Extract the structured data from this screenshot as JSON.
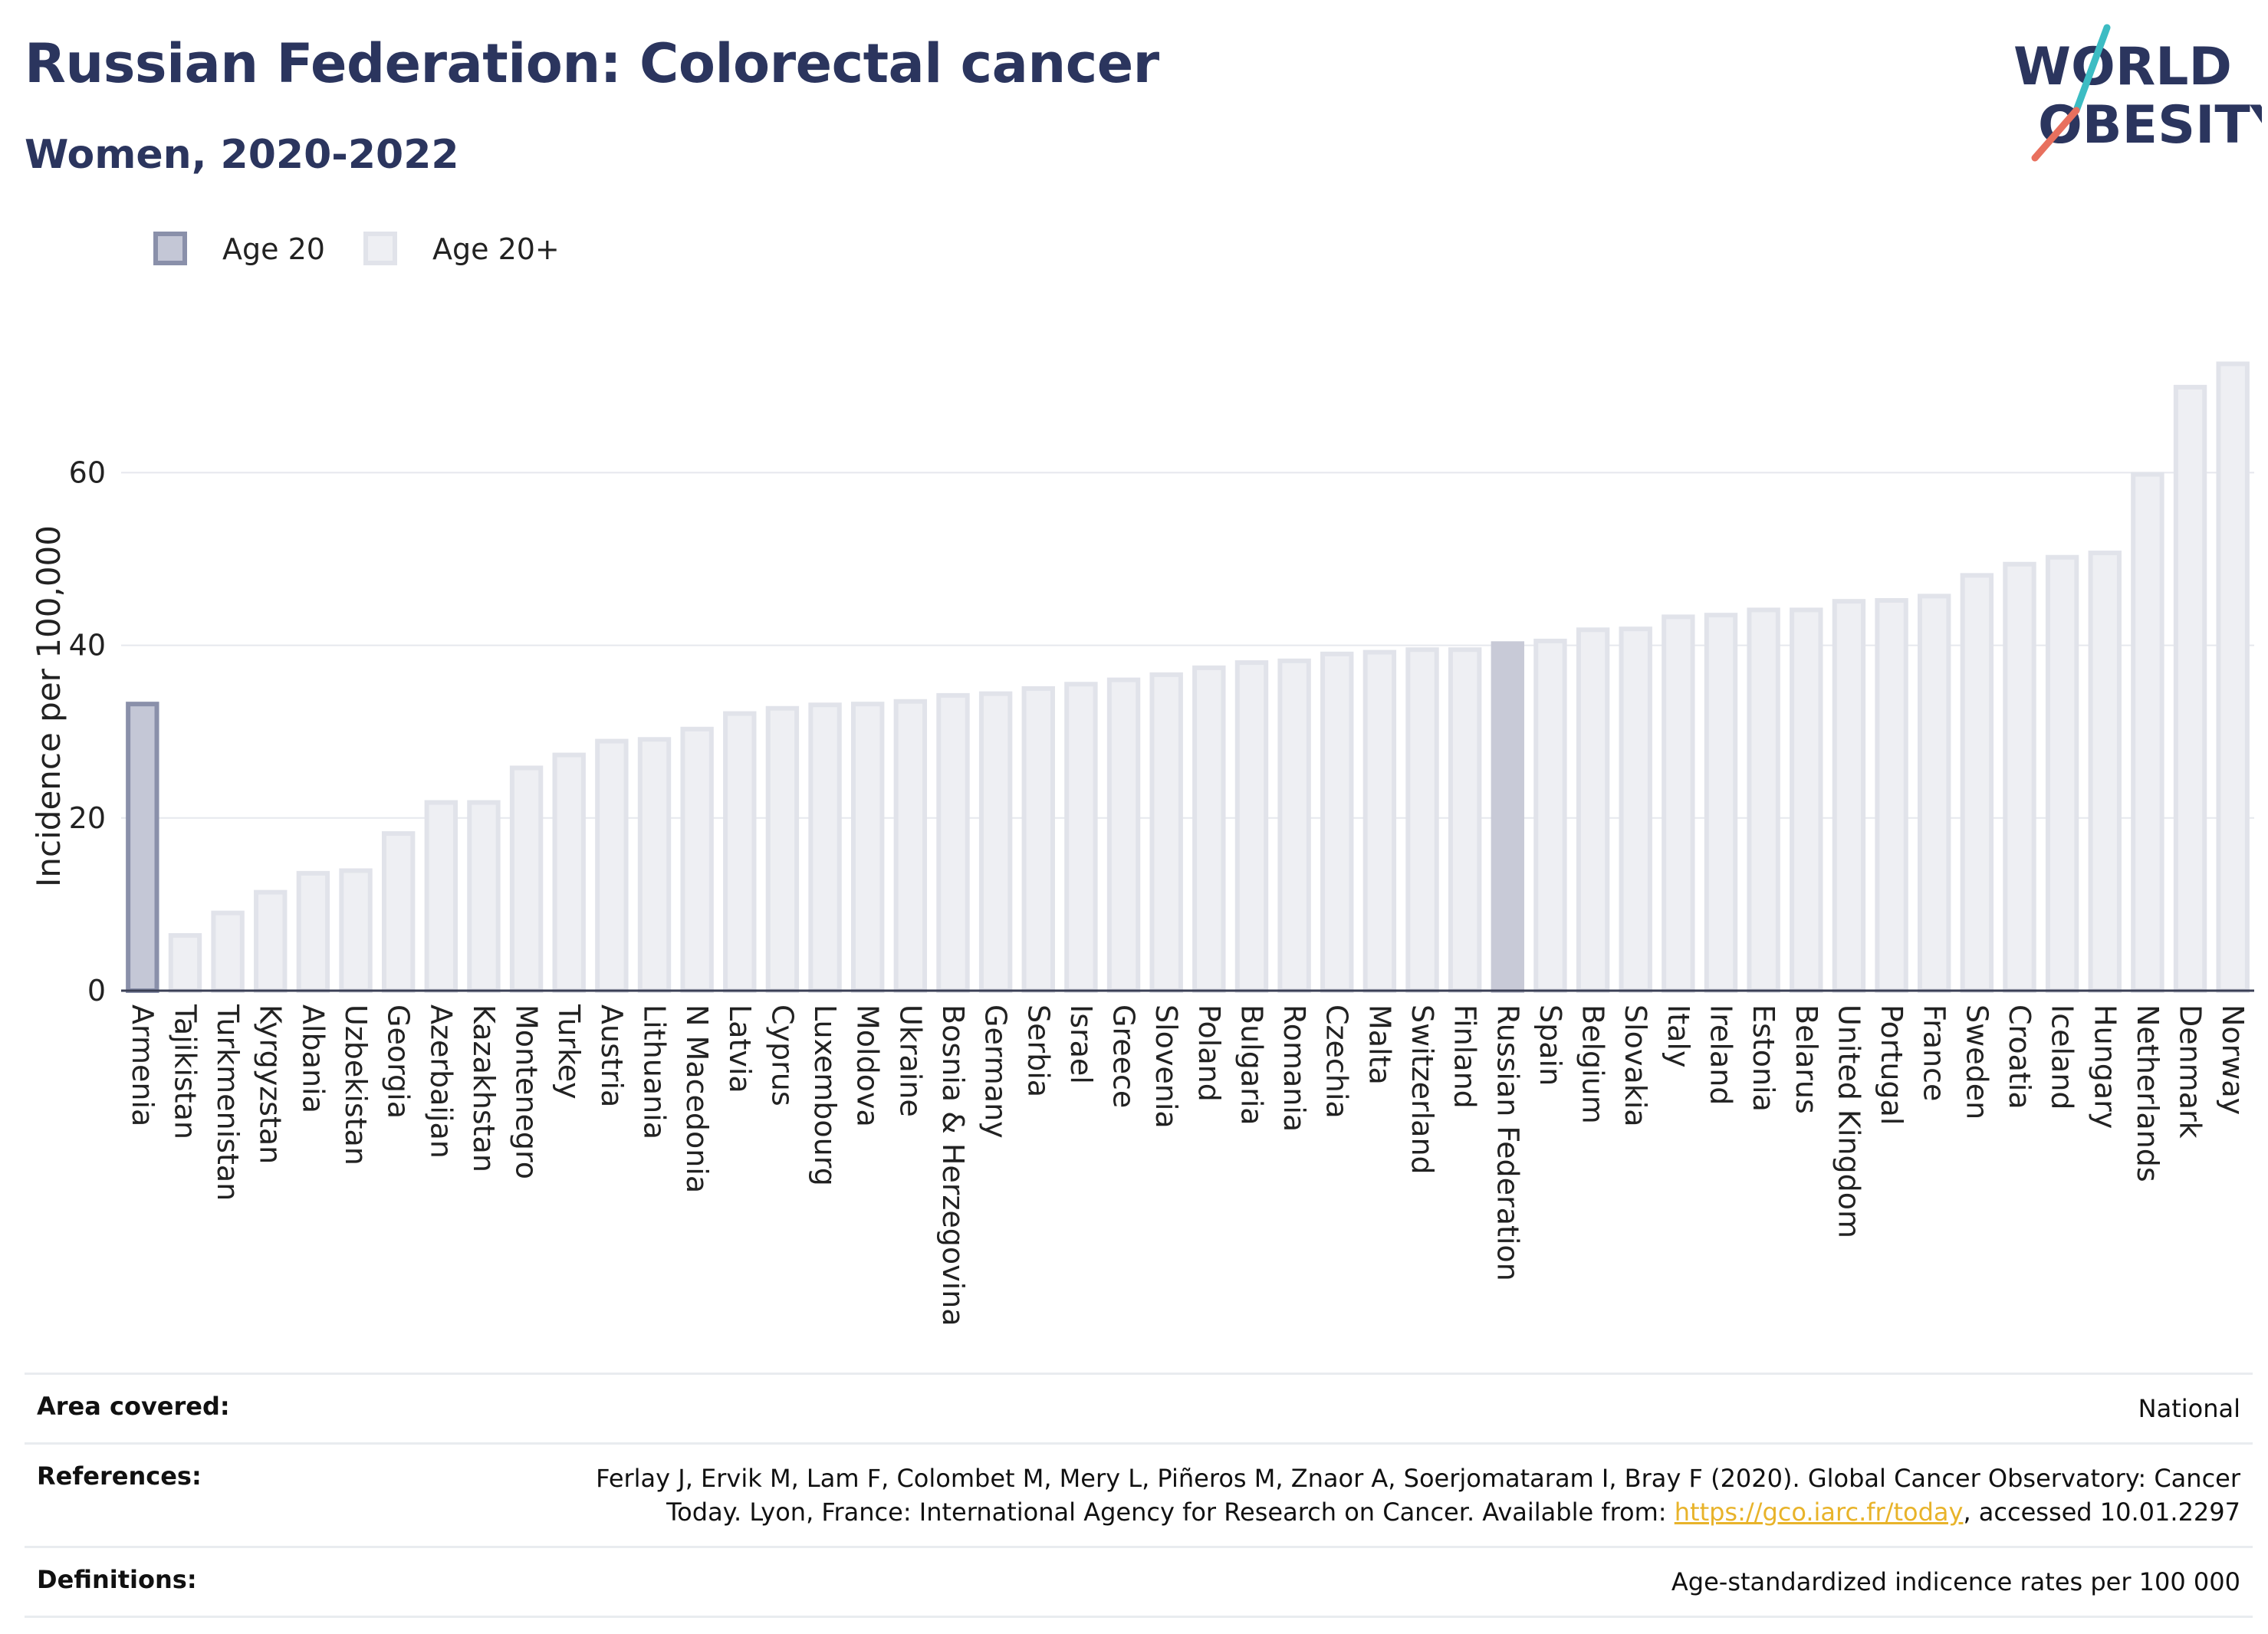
{
  "header": {
    "title": "Russian Federation: Colorectal cancer",
    "subtitle": "Women, 2020-2022"
  },
  "logo": {
    "line1": "WORLD",
    "line2": "OBESITY"
  },
  "colors": {
    "title": "#2b355e",
    "age20_fill": "#c4c7d6",
    "age20_stroke": "#8a90aa",
    "age20plus_fill": "#eeeff3",
    "age20plus_stroke": "#e1e3ea",
    "highlight_fill": "#c8cad7",
    "grid": "#e6e8ee",
    "axis_line": "#3a3f55",
    "link": "#e8b32a",
    "logo_teal": "#3cbcc3",
    "logo_coral": "#e8705e"
  },
  "chart_data": {
    "type": "bar",
    "ylabel": "Incidence per 100,000",
    "xlabel": "",
    "ylim": [
      0,
      73
    ],
    "yticks": [
      0,
      20,
      40,
      60
    ],
    "grid": true,
    "legend_position": "top-left",
    "highlighted_category": "Russian Federation",
    "categories": [
      "Armenia",
      "Tajikistan",
      "Turkmenistan",
      "Kyrgyzstan",
      "Albania",
      "Uzbekistan",
      "Georgia",
      "Azerbaijan",
      "Kazakhstan",
      "Montenegro",
      "Turkey",
      "Austria",
      "Lithuania",
      "N Macedonia",
      "Latvia",
      "Cyprus",
      "Luxembourg",
      "Moldova",
      "Ukraine",
      "Bosnia & Herzegovina",
      "Germany",
      "Serbia",
      "Israel",
      "Greece",
      "Slovenia",
      "Poland",
      "Bulgaria",
      "Romania",
      "Czechia",
      "Malta",
      "Switzerland",
      "Finland",
      "Russian Federation",
      "Spain",
      "Belgium",
      "Slovakia",
      "Italy",
      "Ireland",
      "Estonia",
      "Belarus",
      "United Kingdom",
      "Portugal",
      "France",
      "Sweden",
      "Croatia",
      "Iceland",
      "Hungary",
      "Netherlands",
      "Denmark",
      "Norway"
    ],
    "series": [
      {
        "name": "Age 20",
        "values": [
          33.2,
          null,
          null,
          null,
          null,
          null,
          null,
          null,
          null,
          null,
          null,
          null,
          null,
          null,
          null,
          null,
          null,
          null,
          null,
          null,
          null,
          null,
          null,
          null,
          null,
          null,
          null,
          null,
          null,
          null,
          null,
          null,
          null,
          null,
          null,
          null,
          null,
          null,
          null,
          null,
          null,
          null,
          null,
          null,
          null,
          null,
          null,
          null,
          null,
          null
        ]
      },
      {
        "name": "Age 20+",
        "values": [
          null,
          6.4,
          9.0,
          11.4,
          13.6,
          13.9,
          18.2,
          21.8,
          21.8,
          25.8,
          27.3,
          28.9,
          29.1,
          30.3,
          32.1,
          32.7,
          33.1,
          33.2,
          33.5,
          34.2,
          34.4,
          35.0,
          35.5,
          36.0,
          36.6,
          37.4,
          38.0,
          38.2,
          39.0,
          39.2,
          39.5,
          39.5,
          40.2,
          40.5,
          41.8,
          41.9,
          43.3,
          43.5,
          44.1,
          44.1,
          45.1,
          45.2,
          45.7,
          48.1,
          49.4,
          50.2,
          50.7,
          59.8,
          69.9,
          72.6
        ]
      }
    ]
  },
  "info": {
    "rows": [
      {
        "label": "Area covered:",
        "value": "National"
      },
      {
        "label": "References:",
        "value_before": "Ferlay J, Ervik M, Lam F, Colombet M, Mery L, Piñeros M, Znaor A, Soerjomataram I, Bray F (2020). Global Cancer Observatory: Cancer Today. Lyon, France: International Agency for Research on Cancer. Available from: ",
        "link_text": "https://gco.iarc.fr/today",
        "value_after": ", accessed 10.01.2297"
      },
      {
        "label": "Definitions:",
        "value": "Age-standardized indicence rates per 100 000"
      }
    ]
  }
}
